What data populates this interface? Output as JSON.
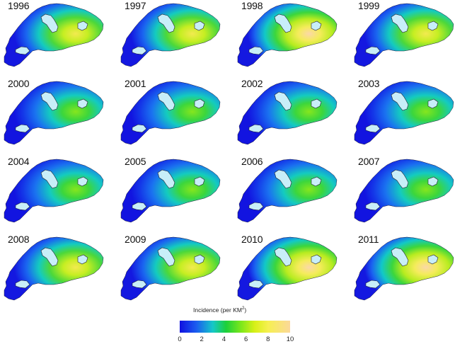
{
  "legend": {
    "title": "Incidence (per KM",
    "title_sup": "2",
    "title_close": ")",
    "ticks": [
      "0",
      "2",
      "4",
      "6",
      "8",
      "10"
    ],
    "range": [
      0,
      10
    ],
    "colors": [
      "#1010e0",
      "#1a5cf0",
      "#15c8c8",
      "#1cd03a",
      "#7fe81a",
      "#d8f018",
      "#f6f050",
      "#fbd89a"
    ]
  },
  "panels": [
    {
      "year": "1996",
      "intensity": 0.72
    },
    {
      "year": "1997",
      "intensity": 0.75
    },
    {
      "year": "1998",
      "intensity": 0.85
    },
    {
      "year": "1999",
      "intensity": 0.76
    },
    {
      "year": "2000",
      "intensity": 0.5
    },
    {
      "year": "2001",
      "intensity": 0.48
    },
    {
      "year": "2002",
      "intensity": 0.55
    },
    {
      "year": "2003",
      "intensity": 0.5
    },
    {
      "year": "2004",
      "intensity": 0.42
    },
    {
      "year": "2005",
      "intensity": 0.42
    },
    {
      "year": "2006",
      "intensity": 0.45
    },
    {
      "year": "2007",
      "intensity": 0.44
    },
    {
      "year": "2008",
      "intensity": 0.72
    },
    {
      "year": "2009",
      "intensity": 0.74
    },
    {
      "year": "2010",
      "intensity": 0.88
    },
    {
      "year": "2011",
      "intensity": 0.95
    }
  ]
}
